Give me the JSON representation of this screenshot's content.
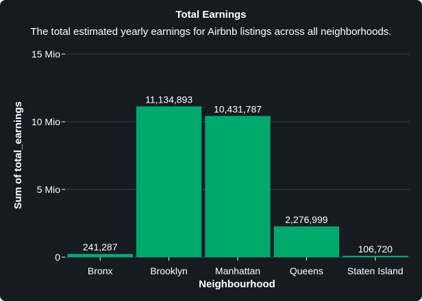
{
  "chart_data": {
    "type": "bar",
    "title": "Total Earnings",
    "subtitle": "The total estimated yearly earnings for Airbnb listings across all neighborhoods.",
    "xlabel": "Neighbourhood",
    "ylabel": "Sum of total_earnings",
    "categories": [
      "Bronx",
      "Brooklyn",
      "Manhattan",
      "Queens",
      "Staten Island"
    ],
    "values": [
      241287,
      11134893,
      10431787,
      2276999,
      106720
    ],
    "value_labels": [
      "241,287",
      "11,134,893",
      "10,431,787",
      "2,276,999",
      "106,720"
    ],
    "ylim": [
      0,
      15000000
    ],
    "yticks": [
      0,
      5000000,
      10000000,
      15000000
    ],
    "ytick_labels": [
      "0",
      "5 Mio",
      "10 Mio",
      "15 Mio"
    ],
    "grid": true,
    "colors": {
      "bar": "#00a86b",
      "background": "#161b22",
      "grid": "#3a4040",
      "text": "#ffffff"
    }
  }
}
